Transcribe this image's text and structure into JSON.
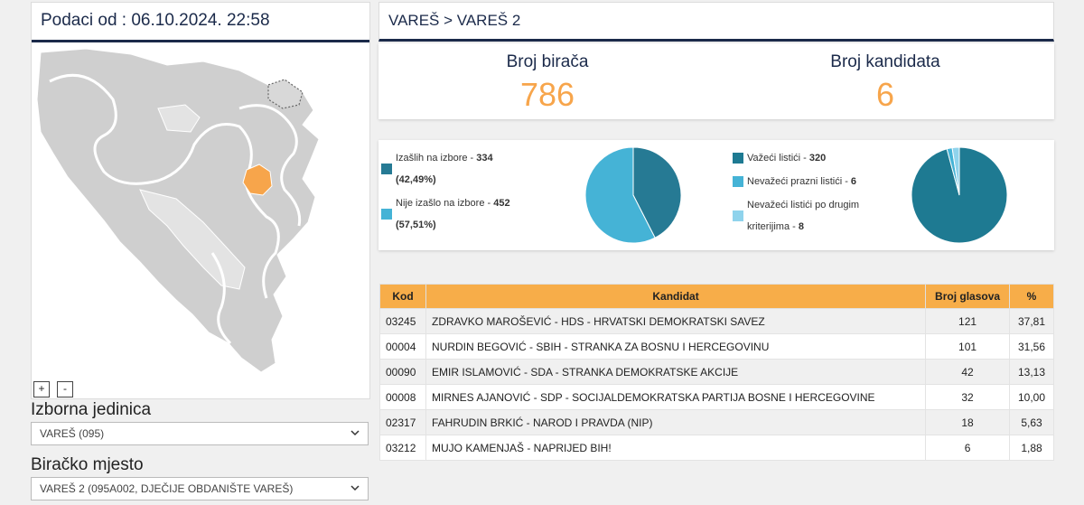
{
  "header": {
    "date_label": "Podaci od : 06.10.2024. 22:58"
  },
  "map": {
    "zoom_in": "+",
    "zoom_out": "-",
    "highlight_color": "#f7a54b",
    "region_color": "#d6d6d6"
  },
  "filters": {
    "izborna_label": "Izborna jedinica",
    "izborna_value": "VAREŠ (095)",
    "biracko_label": "Biračko mjesto",
    "biracko_value": "VAREŠ 2 (095A002, DJEČIJE OBDANIŠTE VAREŠ)"
  },
  "breadcrumb": "VAREŠ > VAREŠ 2",
  "stats": {
    "voters_label": "Broj birača",
    "voters_value": "786",
    "candidates_label": "Broj kandidata",
    "candidates_value": "6"
  },
  "turnout": {
    "items": [
      {
        "label": "Izašlih na izbore - ",
        "count": "334",
        "pct": "(42,49%)",
        "value": 42.49,
        "color": "#267a94"
      },
      {
        "label": "Nije izašlo na izbore - ",
        "count": "452",
        "pct": "(57,51%)",
        "value": 57.51,
        "color": "#45b3d6"
      }
    ]
  },
  "ballots": {
    "items": [
      {
        "label": "Važeći listići - ",
        "count": "320",
        "value": 320,
        "color": "#1e7a92"
      },
      {
        "label": "Nevažeći prazni listići - ",
        "count": "6",
        "value": 6,
        "color": "#45b3d6"
      },
      {
        "label_line1": "Nevažeći listići po drugim",
        "label_line2": "kriterijima - ",
        "count": "8",
        "value": 8,
        "color": "#8fd3ec"
      }
    ]
  },
  "table": {
    "headers": {
      "kod": "Kod",
      "kandidat": "Kandidat",
      "glasova": "Broj glasova",
      "pct": "%"
    },
    "rows": [
      {
        "kod": "03245",
        "kandidat": "ZDRAVKO MAROŠEVIĆ - HDS - HRVATSKI DEMOKRATSKI SAVEZ",
        "glasova": "121",
        "pct": "37,81"
      },
      {
        "kod": "00004",
        "kandidat": "NURDIN BEGOVIĆ - SBIH - STRANKA ZA BOSNU I HERCEGOVINU",
        "glasova": "101",
        "pct": "31,56"
      },
      {
        "kod": "00090",
        "kandidat": "EMIR ISLAMOVIĆ - SDA - STRANKA DEMOKRATSKE AKCIJE",
        "glasova": "42",
        "pct": "13,13"
      },
      {
        "kod": "00008",
        "kandidat": "MIRNES AJANOVIĆ - SDP - SOCIJALDEMOKRATSKA PARTIJA BOSNE I HERCEGOVINE",
        "glasova": "32",
        "pct": "10,00"
      },
      {
        "kod": "02317",
        "kandidat": "FAHRUDIN BRKIĆ - NAROD I PRAVDA (NIP)",
        "glasova": "18",
        "pct": "5,63"
      },
      {
        "kod": "03212",
        "kandidat": "MUJO KAMENJAŠ - NAPRIJED BIH!",
        "glasova": "6",
        "pct": "1,88"
      }
    ]
  }
}
